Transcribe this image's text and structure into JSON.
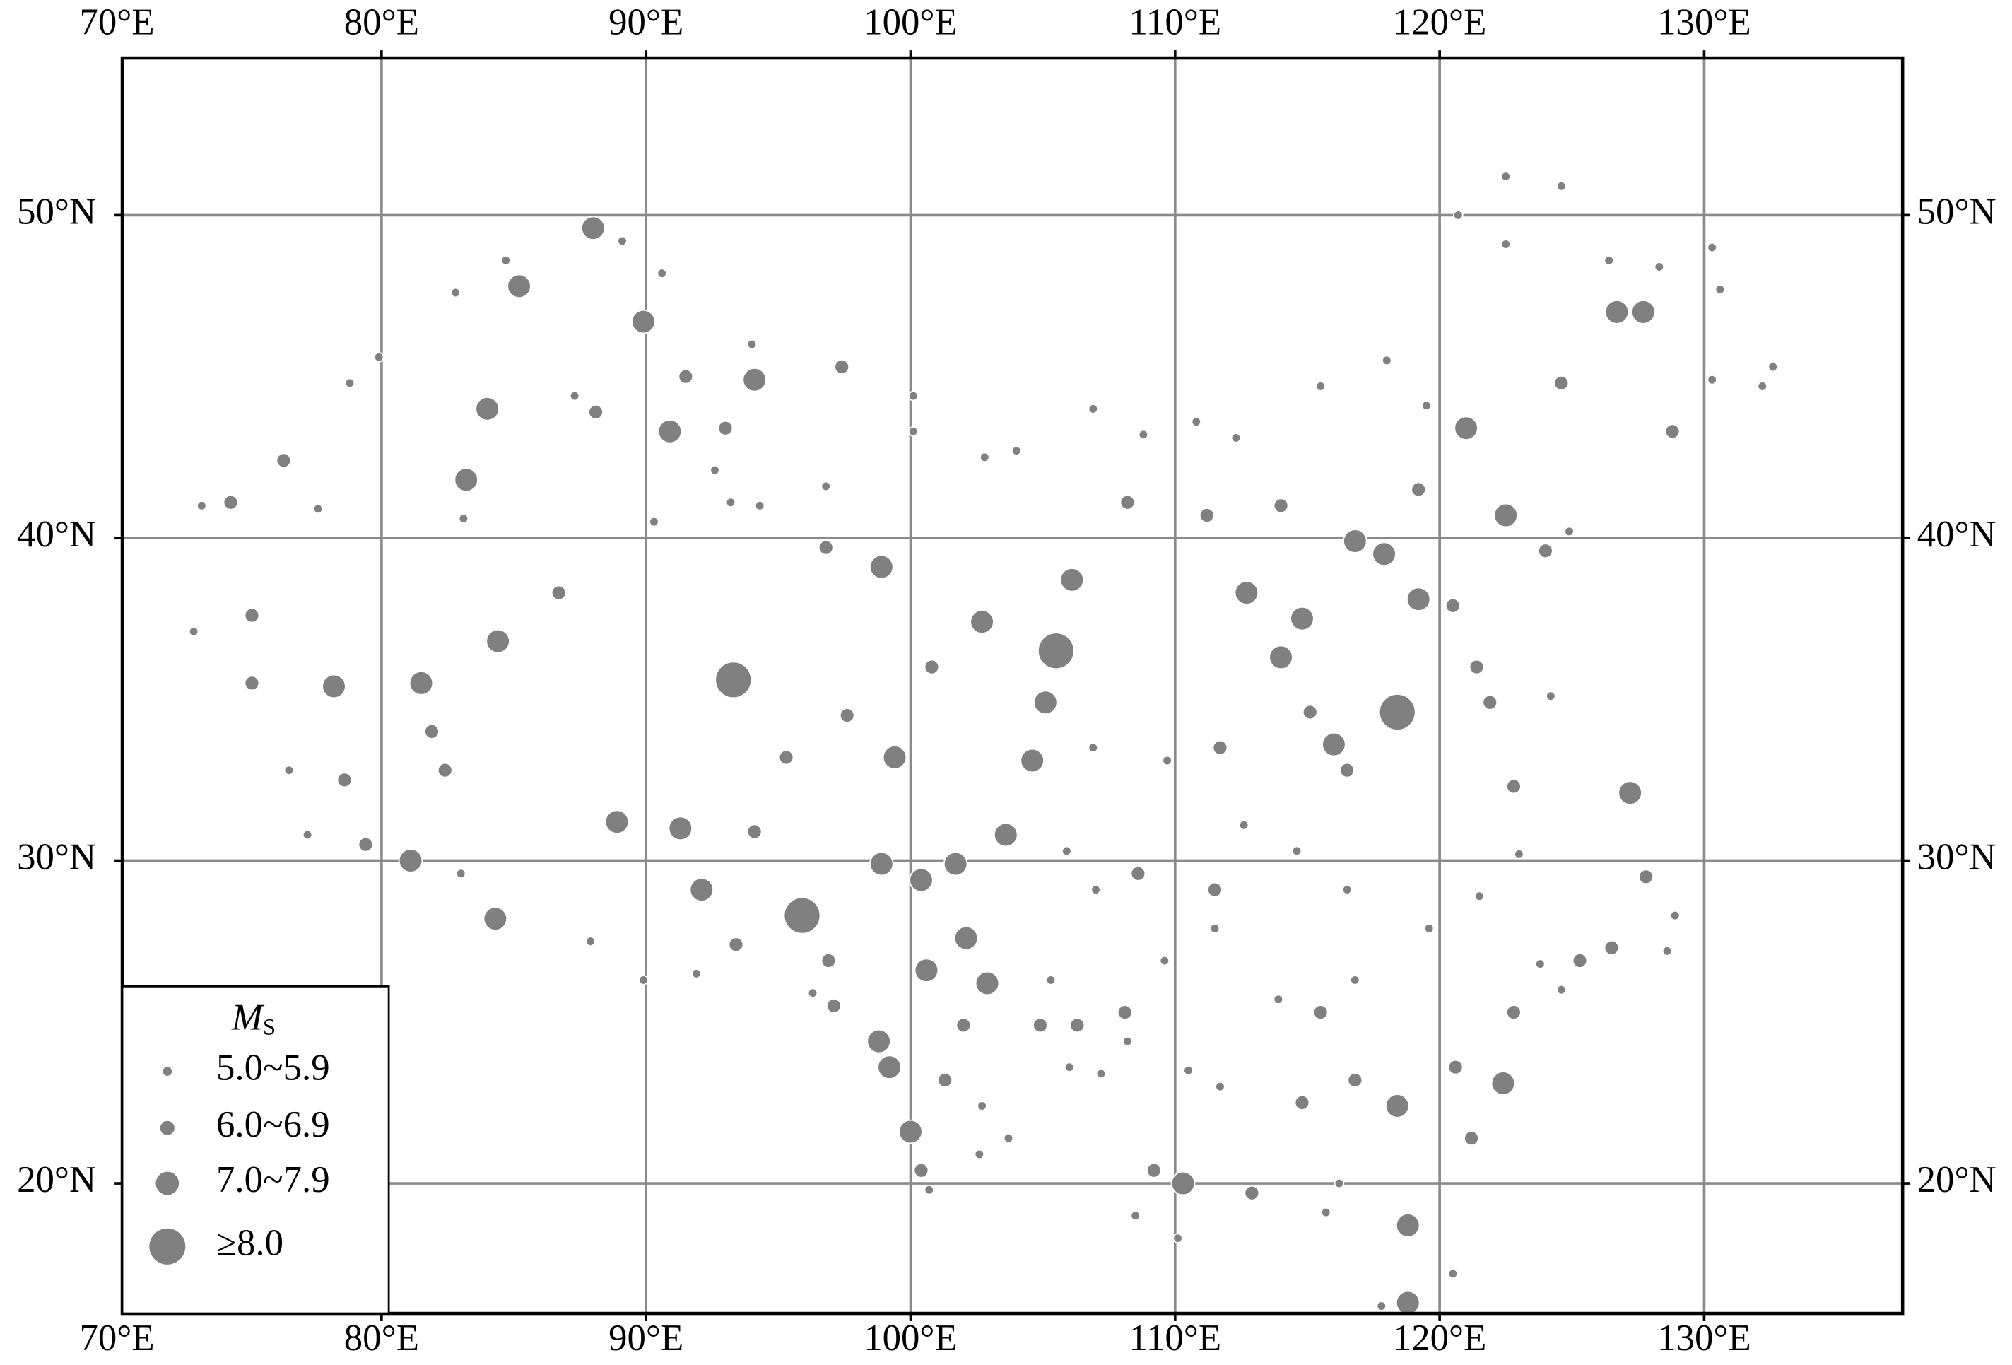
{
  "chart_data": {
    "type": "scatter",
    "xlim": [
      70.2,
      137.5
    ],
    "ylim": [
      15.97,
      54.87
    ],
    "xticks": [
      {
        "value": 70,
        "label": "70°E"
      },
      {
        "value": 80,
        "label": "80°E"
      },
      {
        "value": 90,
        "label": "90°E"
      },
      {
        "value": 100,
        "label": "100°E"
      },
      {
        "value": 110,
        "label": "110°E"
      },
      {
        "value": 120,
        "label": "120°E"
      },
      {
        "value": 130,
        "label": "130°E"
      }
    ],
    "yticks": [
      {
        "value": 20,
        "label": "20°N"
      },
      {
        "value": 30,
        "label": "30°N"
      },
      {
        "value": 40,
        "label": "40°N"
      },
      {
        "value": 50,
        "label": "50°N"
      }
    ],
    "grid": true,
    "legend_title": "M",
    "legend_title_subscript": "S",
    "legend": "lower left",
    "series": [
      {
        "name": "5.0~5.9",
        "color": "#808080",
        "x": [
          73.2,
          72.9,
          78.8,
          79.9,
          82.8,
          84.7,
          89.1,
          90.6,
          92.6,
          93.2,
          94.0,
          100.1,
          100.1,
          102.8,
          104.0,
          106.9,
          108.8,
          110.8,
          112.3,
          115.5,
          118.0,
          119.5,
          122.5,
          124.6,
          120.7,
          122.5,
          126.4,
          128.3,
          130.3,
          130.6,
          130.3,
          132.2,
          132.6,
          124.9,
          124.2,
          123.0,
          128.9,
          128.6,
          116.5,
          114.6,
          112.6,
          109.7,
          106.9,
          105.9,
          107.0,
          109.6,
          111.5,
          108.2,
          107.2,
          103.7,
          102.7,
          110.5,
          111.7,
          110.1,
          108.5,
          115.7,
          117.8,
          120.5,
          116.2,
          123.8,
          124.6,
          116.8,
          113.9,
          96.8,
          94.3,
          90.3,
          87.3,
          83.1,
          77.6,
          76.5,
          77.2,
          83.0,
          87.9,
          89.9,
          91.9,
          105.3,
          106.0,
          100.7,
          102.6,
          96.3,
          119.6,
          121.5
        ],
        "values": [
          41.0,
          37.1,
          44.8,
          45.6,
          47.6,
          48.6,
          49.2,
          48.2,
          42.1,
          41.1,
          46.0,
          44.4,
          43.3,
          42.5,
          42.7,
          44.0,
          43.2,
          43.6,
          43.1,
          44.7,
          45.5,
          44.1,
          51.2,
          50.9,
          50.0,
          49.1,
          48.6,
          48.4,
          49.0,
          47.7,
          44.9,
          44.7,
          45.3,
          40.2,
          35.1,
          30.2,
          28.3,
          27.2,
          29.1,
          30.3,
          31.1,
          33.1,
          33.5,
          30.3,
          29.1,
          26.9,
          27.9,
          24.4,
          23.4,
          21.4,
          22.4,
          23.5,
          23.0,
          18.3,
          19.0,
          19.1,
          16.2,
          17.2,
          20.0,
          26.8,
          26.0,
          26.3,
          25.7,
          41.6,
          41.0,
          40.5,
          44.4,
          40.6,
          40.9,
          32.8,
          30.8,
          29.6,
          27.5,
          26.3,
          26.5,
          26.3,
          23.6,
          19.8,
          20.9,
          25.9,
          27.9,
          28.9
        ]
      },
      {
        "name": "6.0~6.9",
        "color": "#808080",
        "x": [
          75.1,
          74.3,
          76.3,
          75.1,
          78.6,
          79.4,
          81.9,
          82.4,
          86.7,
          88.1,
          91.5,
          93.0,
          97.4,
          96.8,
          100.8,
          97.6,
          95.3,
          94.1,
          93.4,
          96.9,
          97.1,
          102.0,
          104.9,
          101.3,
          100.4,
          109.2,
          108.6,
          111.5,
          114.8,
          115.5,
          116.8,
          120.6,
          121.2,
          122.8,
          125.3,
          126.5,
          127.8,
          122.8,
          121.9,
          121.4,
          120.5,
          119.2,
          124.6,
          124.0,
          128.8,
          111.2,
          108.2,
          114.0,
          111.7,
          115.1,
          116.5,
          108.1,
          106.3,
          112.9
        ],
        "values": [
          37.6,
          41.1,
          42.4,
          35.5,
          32.5,
          30.5,
          34.0,
          32.8,
          38.3,
          43.9,
          45.0,
          43.4,
          45.3,
          39.7,
          36.0,
          34.5,
          33.2,
          30.9,
          27.4,
          26.9,
          25.5,
          24.9,
          24.9,
          23.2,
          20.4,
          20.4,
          29.6,
          29.1,
          22.5,
          25.3,
          23.2,
          23.6,
          21.4,
          25.3,
          26.9,
          27.3,
          29.5,
          32.3,
          34.9,
          36.0,
          37.9,
          41.5,
          44.8,
          39.6,
          43.3,
          40.7,
          41.1,
          41.0,
          33.5,
          34.6,
          32.8,
          25.3,
          24.9,
          19.7
        ]
      },
      {
        "name": "7.0~7.9",
        "color": "#808080",
        "x": [
          88.0,
          85.2,
          89.9,
          94.1,
          90.9,
          84.0,
          83.2,
          84.4,
          81.5,
          78.2,
          98.9,
          106.1,
          102.7,
          112.7,
          114.8,
          114.0,
          117.9,
          119.2,
          122.5,
          105.1,
          104.6,
          99.4,
          91.3,
          100.4,
          98.9,
          101.7,
          102.1,
          102.9,
          100.6,
          98.8,
          99.2,
          100.0,
          118.4,
          118.8,
          118.8,
          110.3,
          127.2,
          126.7,
          127.7,
          121.0,
          81.1,
          84.3,
          92.1,
          88.9,
          116.8,
          116.0,
          122.4,
          103.6
        ],
        "values": [
          49.6,
          47.8,
          46.7,
          44.9,
          43.3,
          44.0,
          41.8,
          36.8,
          35.5,
          35.4,
          39.1,
          38.7,
          37.4,
          38.3,
          37.5,
          36.3,
          39.5,
          38.1,
          40.7,
          34.9,
          33.1,
          33.2,
          31.0,
          29.4,
          29.9,
          29.9,
          27.6,
          26.2,
          26.6,
          24.4,
          23.6,
          21.6,
          22.4,
          16.3,
          18.7,
          20.0,
          32.1,
          47.0,
          47.0,
          43.4,
          30.0,
          28.2,
          29.1,
          31.2,
          39.9,
          33.6,
          23.1,
          30.8
        ]
      },
      {
        "name": "≥8.0",
        "color": "#808080",
        "x": [
          95.9,
          118.4,
          93.3,
          105.5
        ],
        "values": [
          28.3,
          34.6,
          35.6,
          36.5
        ]
      }
    ]
  }
}
